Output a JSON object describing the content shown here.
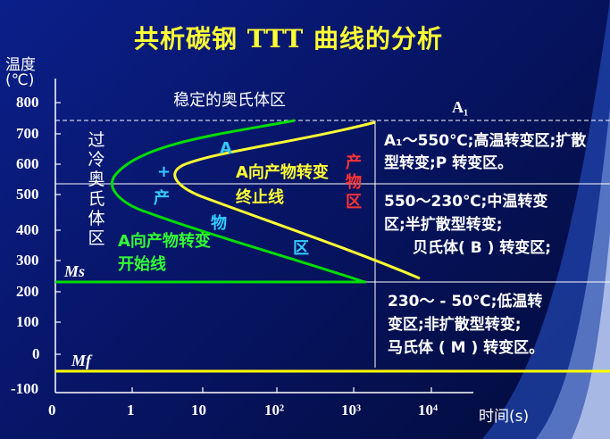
{
  "title": "共析碳钢 TTT 曲线的分析",
  "y_axis": {
    "label_line1": "温度",
    "label_line2": "(℃)",
    "ticks": [
      "800",
      "700",
      "600",
      "500",
      "400",
      "300",
      "200",
      "100",
      "0",
      "-100"
    ]
  },
  "x_axis": {
    "label": "时间(s)",
    "ticks": [
      "0",
      "1",
      "10",
      "10²",
      "10³",
      "10⁴"
    ]
  },
  "regions": {
    "austenite_stable": "稳定的奥氏体区",
    "undercooled_austenite": "过冷奥氏体区",
    "a_plus_product_a": "A",
    "a_plus_product_plus": "+",
    "a_plus_product_chan": "产",
    "a_plus_product_wu": "物",
    "a_plus_product_qu": "区",
    "product_region": "产物区",
    "start_line_label": "A向产物转变开始线",
    "finish_line_label": "A向产物转变终止线"
  },
  "lines": {
    "a1": "A₁",
    "ms": "Ms",
    "mf": "Mf"
  },
  "zones": {
    "high": "A₁～550℃;高温转变区;扩散型转变;P 转变区。",
    "mid_line1": "550～230℃;中温转变",
    "mid_line2": "区;半扩散型转变;",
    "mid_line3": "贝氏体( B ) 转变区;",
    "low_line1": "230～ - 50℃;低温转",
    "low_line2": "变区;非扩散型转变;",
    "low_line3": "马氏体 ( M ) 转变区。"
  },
  "colors": {
    "background": "#071566",
    "start_curve": "#00dd00",
    "finish_curve": "#ffff33",
    "mf_line": "#ffff00",
    "ms_line": "#00dd00",
    "title": "#ffff33",
    "product_label": "#ff3333",
    "region_label": "#33ccff"
  }
}
